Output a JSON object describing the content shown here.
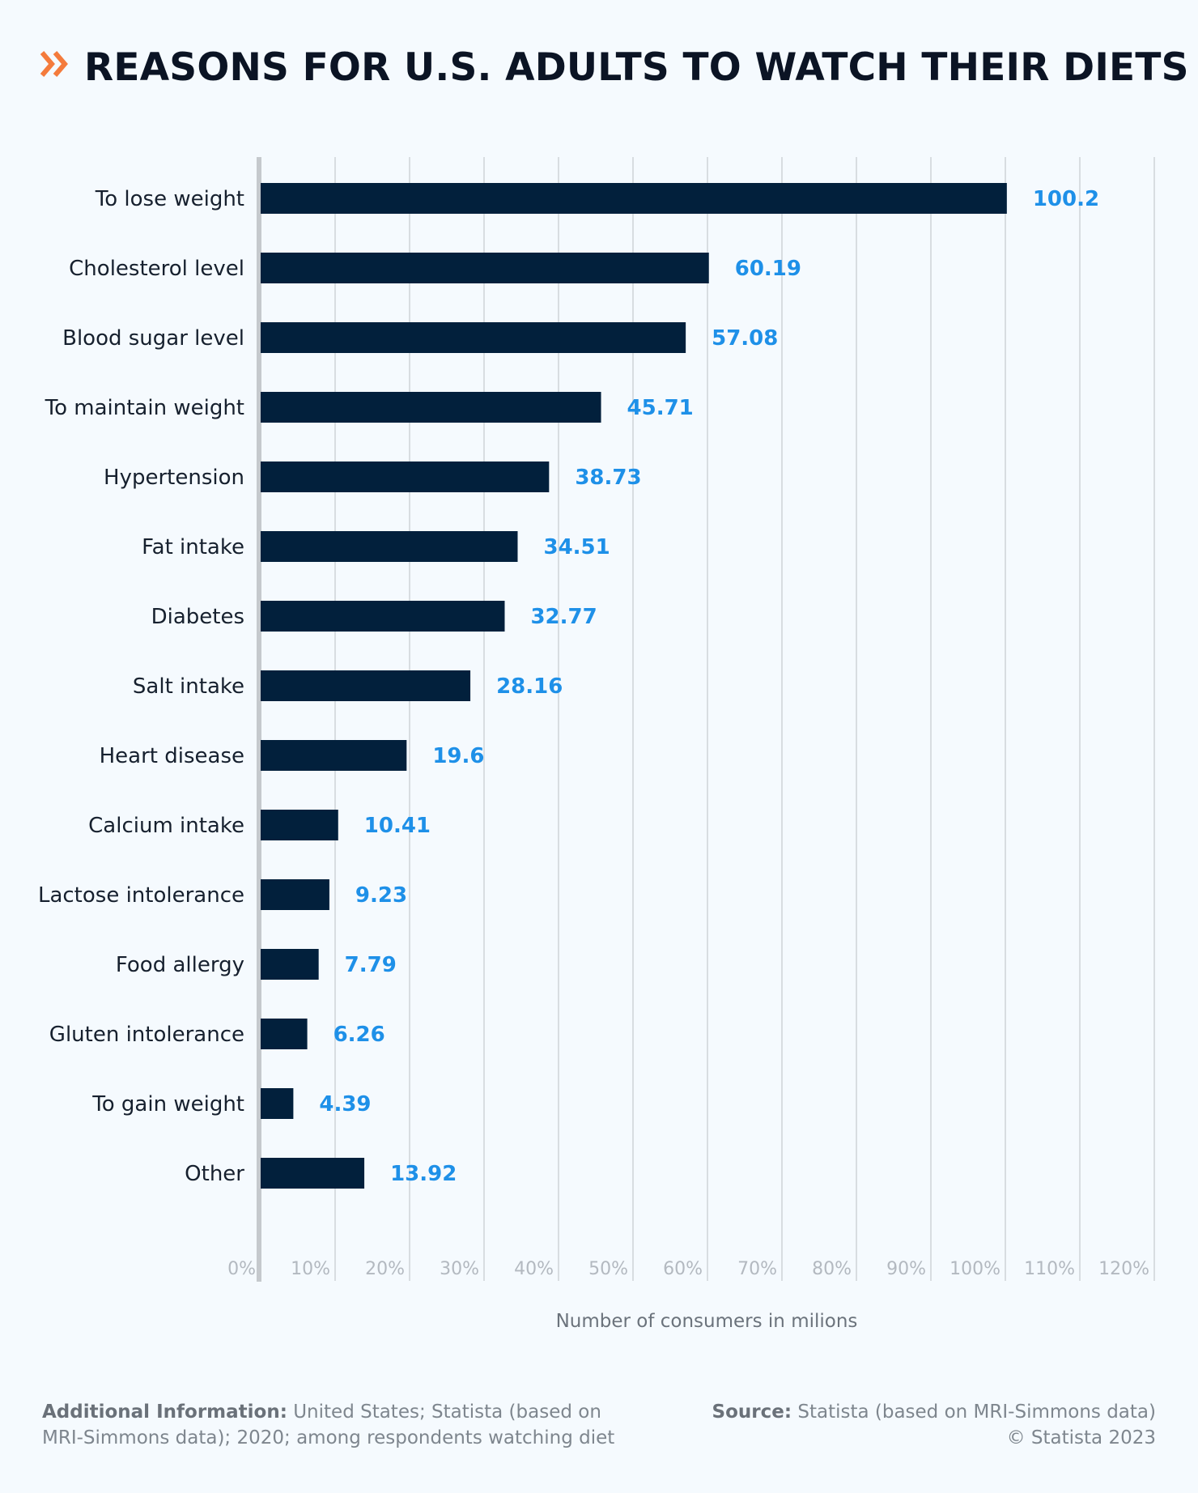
{
  "header": {
    "title": "REASONS FOR U.S. ADULTS TO WATCH THEIR DIETS",
    "icon": "double-chevron-right-icon",
    "accent_color": "#f47b3c"
  },
  "chart_data": {
    "type": "bar",
    "orientation": "horizontal",
    "title": "REASONS FOR U.S. ADULTS TO WATCH THEIR DIETS",
    "xlabel": "Number of consumers in milions",
    "ylabel": "",
    "categories": [
      "To lose weight",
      "Cholesterol level",
      "Blood sugar level",
      "To maintain weight",
      "Hypertension",
      "Fat intake",
      "Diabetes",
      "Salt intake",
      "Heart disease",
      "Calcium intake",
      "Lactose intolerance",
      "Food allergy",
      "Gluten intolerance",
      "To gain weight",
      "Other"
    ],
    "values": [
      100.2,
      60.19,
      57.08,
      45.71,
      38.73,
      34.51,
      32.77,
      28.16,
      19.6,
      10.41,
      9.23,
      7.79,
      6.26,
      4.39,
      13.92
    ],
    "value_labels": [
      "100.2",
      "60.19",
      "57.08",
      "45.71",
      "38.73",
      "34.51",
      "32.77",
      "28.16",
      "19.6",
      "10.41",
      "9.23",
      "7.79",
      "6.26",
      "4.39",
      "13.92"
    ],
    "xlim": [
      0,
      120
    ],
    "xticks": [
      0,
      10,
      20,
      30,
      40,
      50,
      60,
      70,
      80,
      90,
      100,
      110,
      120
    ],
    "xtick_labels": [
      "0%",
      "10%",
      "20%",
      "30%",
      "40%",
      "50%",
      "60%",
      "70%",
      "80%",
      "90%",
      "100%",
      "110%",
      "120%"
    ],
    "grid": true,
    "legend": "none",
    "colors": {
      "bar": "#02203c",
      "value_label": "#1e90e8",
      "grid": "#cfd3d7",
      "axis": "#c5c9cd"
    }
  },
  "footer": {
    "additional_info_label": "Additional Information:",
    "additional_info_text": "United States; Statista (based on MRI-Simmons data); 2020; among respondents watching diet",
    "source_label": "Source:",
    "source_text": "Statista (based on MRI-Simmons data)",
    "copyright": "© Statista 2023"
  }
}
